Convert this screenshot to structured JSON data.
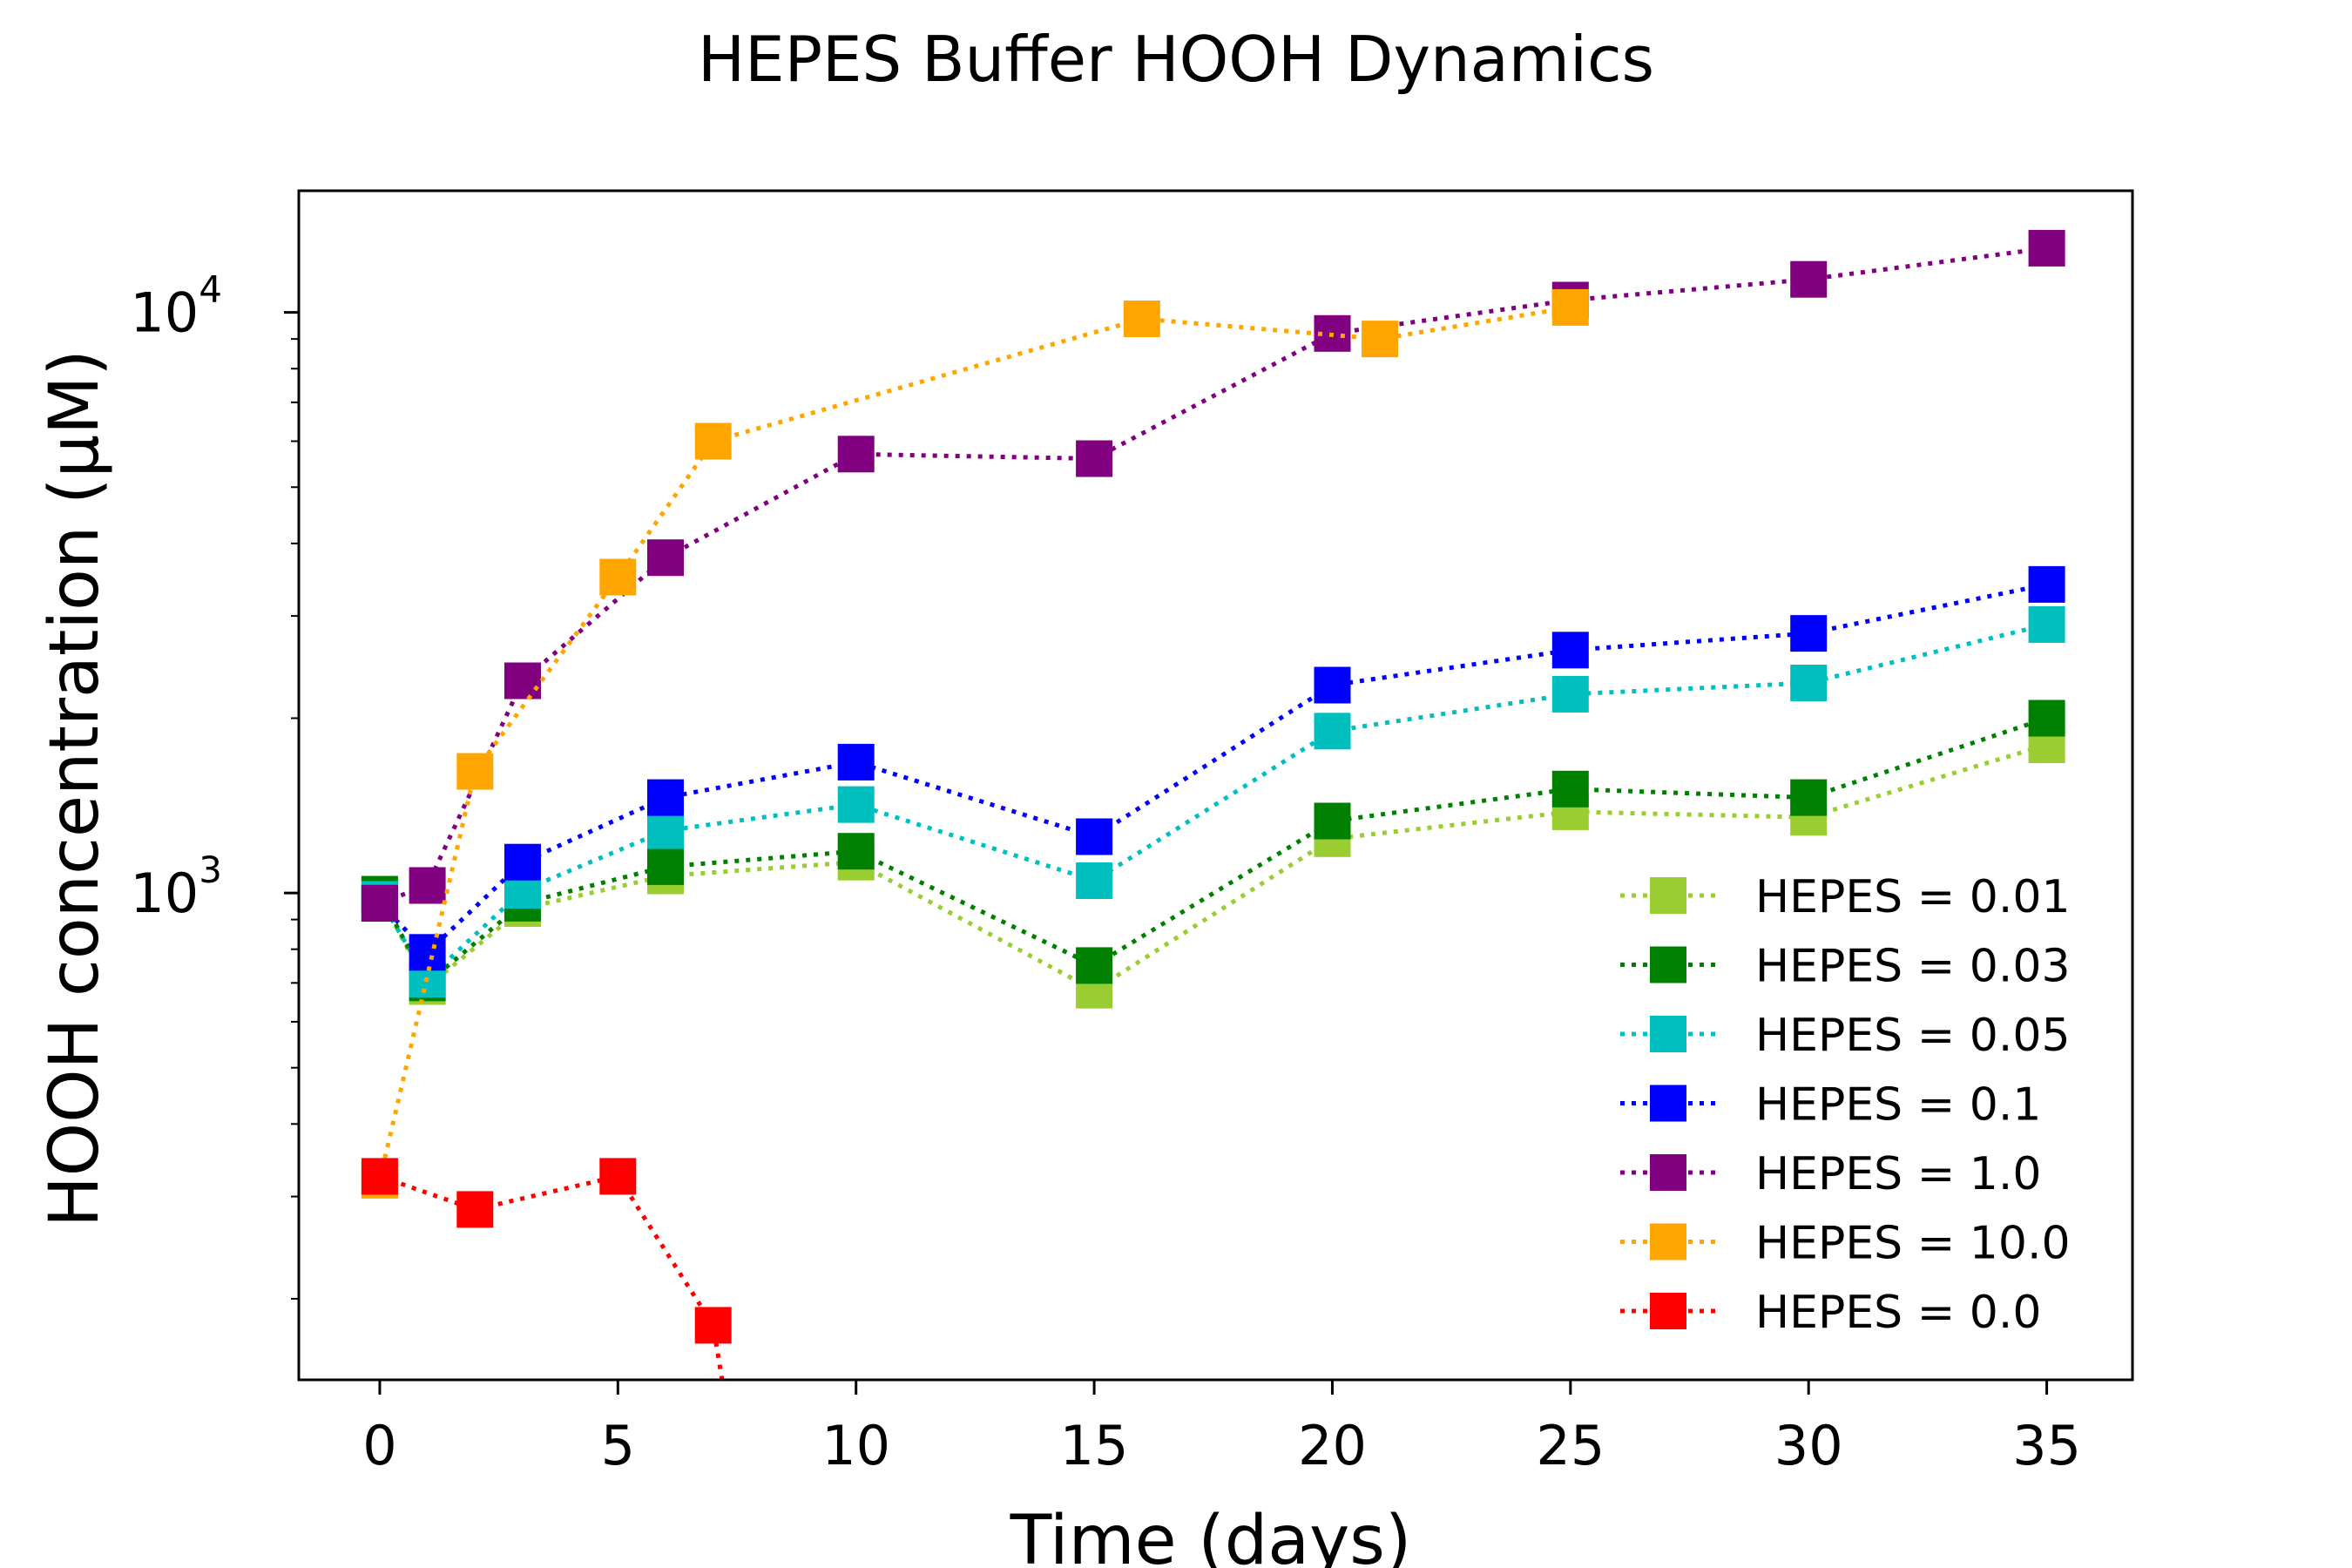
{
  "chart_data": {
    "type": "line",
    "title": "HEPES Buffer HOOH Dynamics",
    "xlabel": "Time (days)",
    "ylabel": "HOOH concentration (µM)",
    "xlim": [
      -1.7,
      36.8
    ],
    "ylim": [
      145,
      16200
    ],
    "yscale": "log",
    "xticks": [
      0,
      5,
      10,
      15,
      20,
      25,
      30,
      35
    ],
    "xtick_labels": [
      "0",
      "5",
      "10",
      "15",
      "20",
      "25",
      "30",
      "35"
    ],
    "yticks": [
      {
        "value": 1000,
        "base": "10",
        "exp": "3"
      },
      {
        "value": 10000,
        "base": "10",
        "exp": "4"
      }
    ],
    "grid": false,
    "legend_position": "lower-right",
    "series": [
      {
        "name": "HEPES = 0.01",
        "color": "#9acd32",
        "x": [
          0,
          1,
          3,
          6,
          10,
          15,
          20,
          25,
          30,
          35
        ],
        "y": [
          990,
          690,
          940,
          1070,
          1130,
          680,
          1240,
          1380,
          1350,
          1800
        ]
      },
      {
        "name": "HEPES = 0.03",
        "color": "#008000",
        "x": [
          0,
          1,
          3,
          6,
          10,
          15,
          20,
          25,
          30,
          35
        ],
        "y": [
          995,
          700,
          960,
          1110,
          1180,
          750,
          1330,
          1510,
          1460,
          2000
        ]
      },
      {
        "name": "HEPES = 0.05",
        "color": "#00bfbf",
        "x": [
          0,
          1,
          3,
          6,
          10,
          15,
          20,
          25,
          30,
          35
        ],
        "y": [
          975,
          710,
          1010,
          1280,
          1420,
          1050,
          1900,
          2200,
          2300,
          2900
        ]
      },
      {
        "name": "HEPES = 0.1",
        "color": "#0000ff",
        "x": [
          0,
          1,
          3,
          6,
          10,
          15,
          20,
          25,
          30,
          35
        ],
        "y": [
          960,
          790,
          1130,
          1460,
          1680,
          1250,
          2280,
          2620,
          2800,
          3400
        ]
      },
      {
        "name": "HEPES = 1.0",
        "color": "#800080",
        "x": [
          0,
          1,
          3,
          6,
          10,
          15,
          20,
          25,
          30,
          35
        ],
        "y": [
          960,
          1030,
          2320,
          3780,
          5700,
          5600,
          9200,
          10500,
          11400,
          12900
        ]
      },
      {
        "name": "HEPES = 10.0",
        "color": "#ffa500",
        "x": [
          0,
          2,
          5,
          7,
          16,
          21,
          25
        ],
        "y": [
          320,
          1620,
          3500,
          6000,
          9750,
          9000,
          10200
        ]
      },
      {
        "name": "HEPES = 0.0",
        "color": "#ff0000",
        "x": [
          0,
          2,
          5,
          7,
          7.7
        ],
        "y": [
          325,
          285,
          325,
          180,
          80
        ]
      }
    ]
  }
}
